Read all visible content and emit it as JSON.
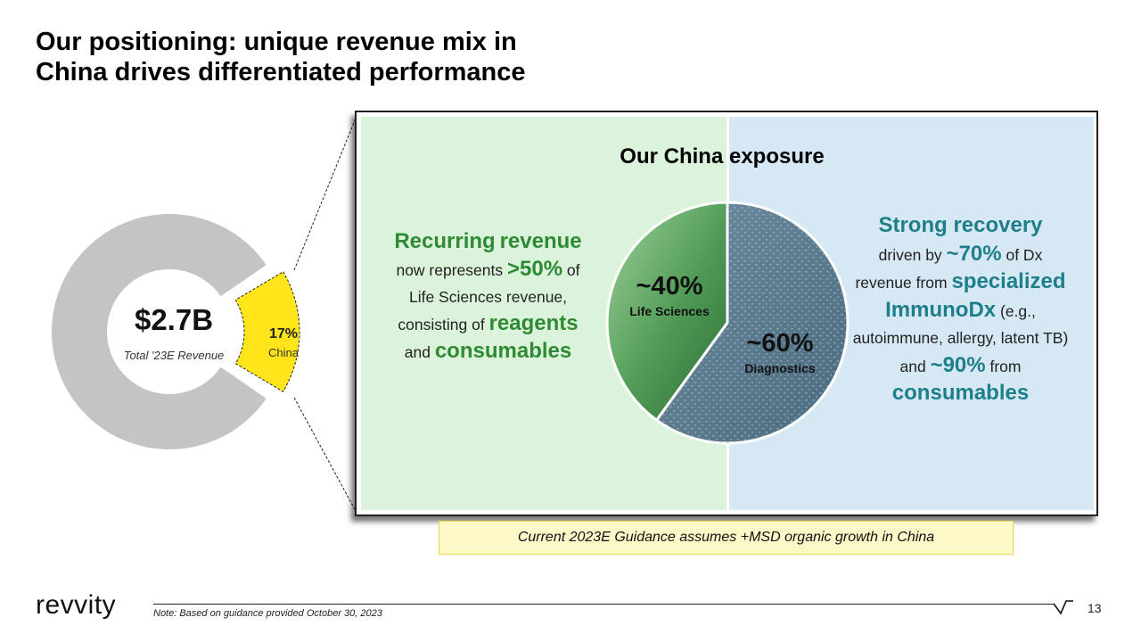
{
  "title": {
    "line1": "Our positioning: unique revenue mix in",
    "line2": "China drives differentiated performance"
  },
  "revenue_donut": {
    "total_value": "$2.7B",
    "total_label": "Total '23E Revenue",
    "segment_value": "17%",
    "segment_label": "China",
    "segment_share": 0.17,
    "colors": {
      "rest": "#c4c4c4",
      "segment": "#ffe51a"
    }
  },
  "panel": {
    "title": "Our China exposure",
    "left": {
      "p1": "Recurring",
      "p2": "revenue",
      "p3": " now represents ",
      "p4": ">50%",
      "p5": " of Life Sciences revenue, consisting of ",
      "p6": "reagents",
      "p7": " and ",
      "p8": "consumables"
    },
    "right": {
      "p1": "Strong recovery",
      "p2": "driven by ",
      "p3": "~70%",
      "p4": " of Dx revenue from ",
      "p5": "specialized ImmunoDx",
      "p6": " (e.g., autoimmune,  allergy, latent TB) and ",
      "p7": "~90%",
      "p8": " from ",
      "p9": "consumables"
    },
    "colors": {
      "left_bg": "#daf3da",
      "right_bg": "#d6e8f4",
      "green": "#2e8b34",
      "teal": "#1e7f8a"
    }
  },
  "china_pie": {
    "life_sciences_value": "~40%",
    "life_sciences_label": "Life Sciences",
    "life_sciences_share": 0.4,
    "diagnostics_value": "~60%",
    "diagnostics_label": "Diagnostics",
    "diagnostics_share": 0.6
  },
  "guidance": "Current 2023E Guidance assumes +MSD organic growth in China",
  "footer": {
    "logo_text": "revvity",
    "note": "Note: Based on guidance provided October 30, 2023",
    "page_number": "13"
  }
}
